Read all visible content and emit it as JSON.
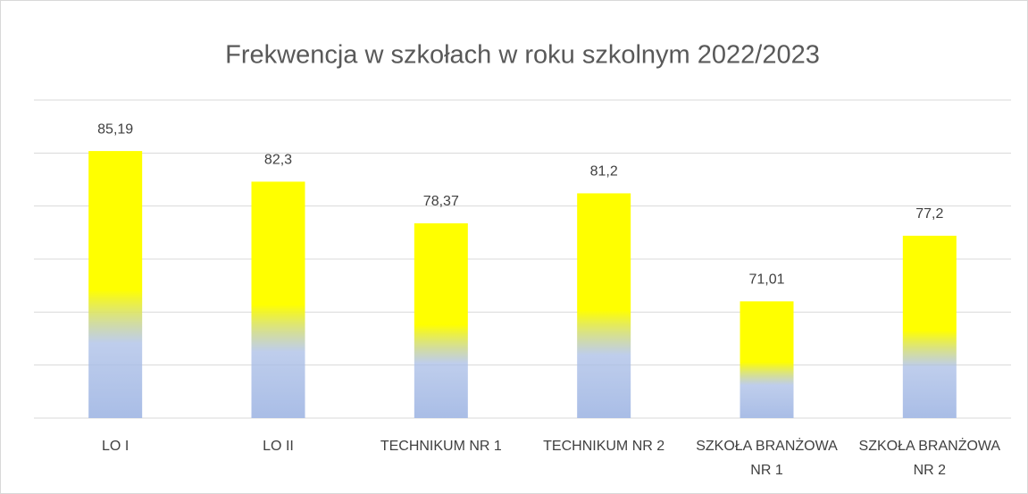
{
  "chart_data": {
    "type": "bar",
    "title": "Frekwencja w szkołach w roku szkolnym 2022/2023",
    "categories": [
      "LO I",
      "LO II",
      "TECHNIKUM NR 1",
      "TECHNIKUM NR 2",
      "SZKOŁA BRANŻOWA NR 1",
      "SZKOŁA BRANŻOWA NR 2"
    ],
    "values": [
      85.19,
      82.3,
      78.37,
      81.2,
      71.01,
      77.2
    ],
    "value_labels": [
      "85,19",
      "82,3",
      "78,37",
      "81,2",
      "71,01",
      "77,2"
    ],
    "color": "#ffff00",
    "gradient_color": "#a9bde6",
    "ylim": [
      60,
      90
    ],
    "yticks": [
      60,
      65,
      70,
      75,
      80,
      85,
      90
    ],
    "grid": true
  }
}
